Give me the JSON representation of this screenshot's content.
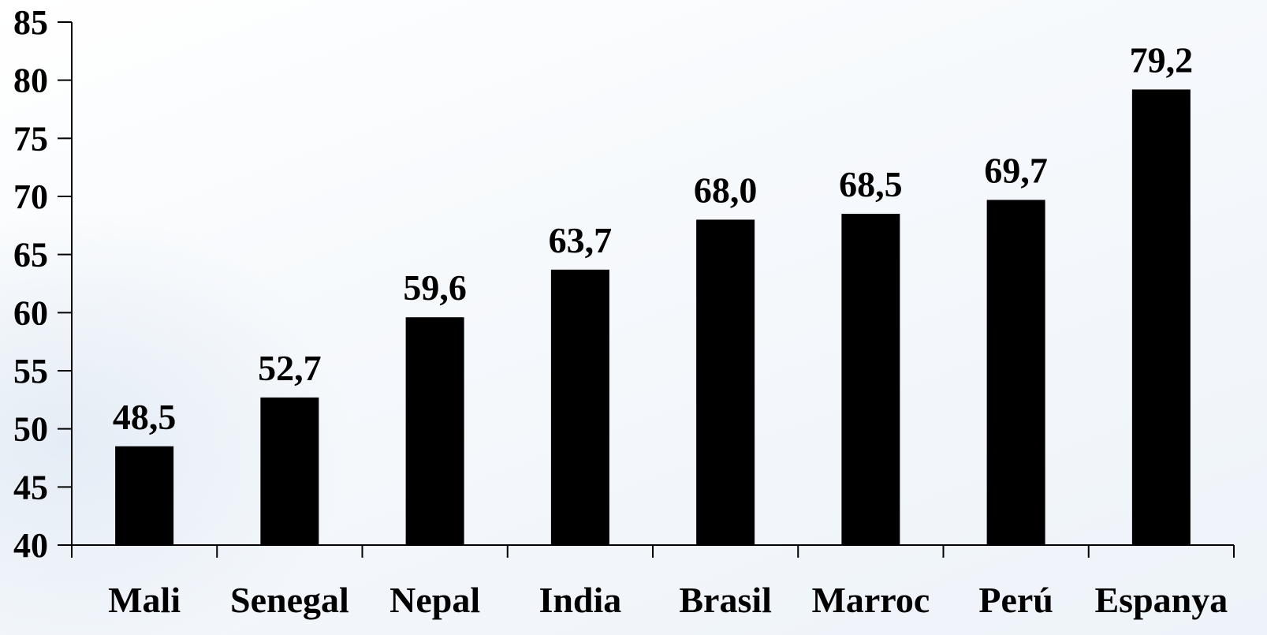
{
  "chart_data": {
    "type": "bar",
    "categories": [
      "Mali",
      "Senegal",
      "Nepal",
      "India",
      "Brasil",
      "Marroc",
      "Perú",
      "Espanya"
    ],
    "values": [
      48.5,
      52.7,
      59.6,
      63.7,
      68.0,
      68.5,
      69.7,
      79.2
    ],
    "data_labels": [
      "48,5",
      "52,7",
      "59,6",
      "63,7",
      "68,0",
      "68,5",
      "69,7",
      "79,2"
    ],
    "ylim": [
      40,
      85
    ],
    "yticks": [
      40,
      45,
      50,
      55,
      60,
      65,
      70,
      75,
      80,
      85
    ],
    "title": "",
    "xlabel": "",
    "ylabel": "",
    "grid": false,
    "bar_color": "#000000"
  }
}
